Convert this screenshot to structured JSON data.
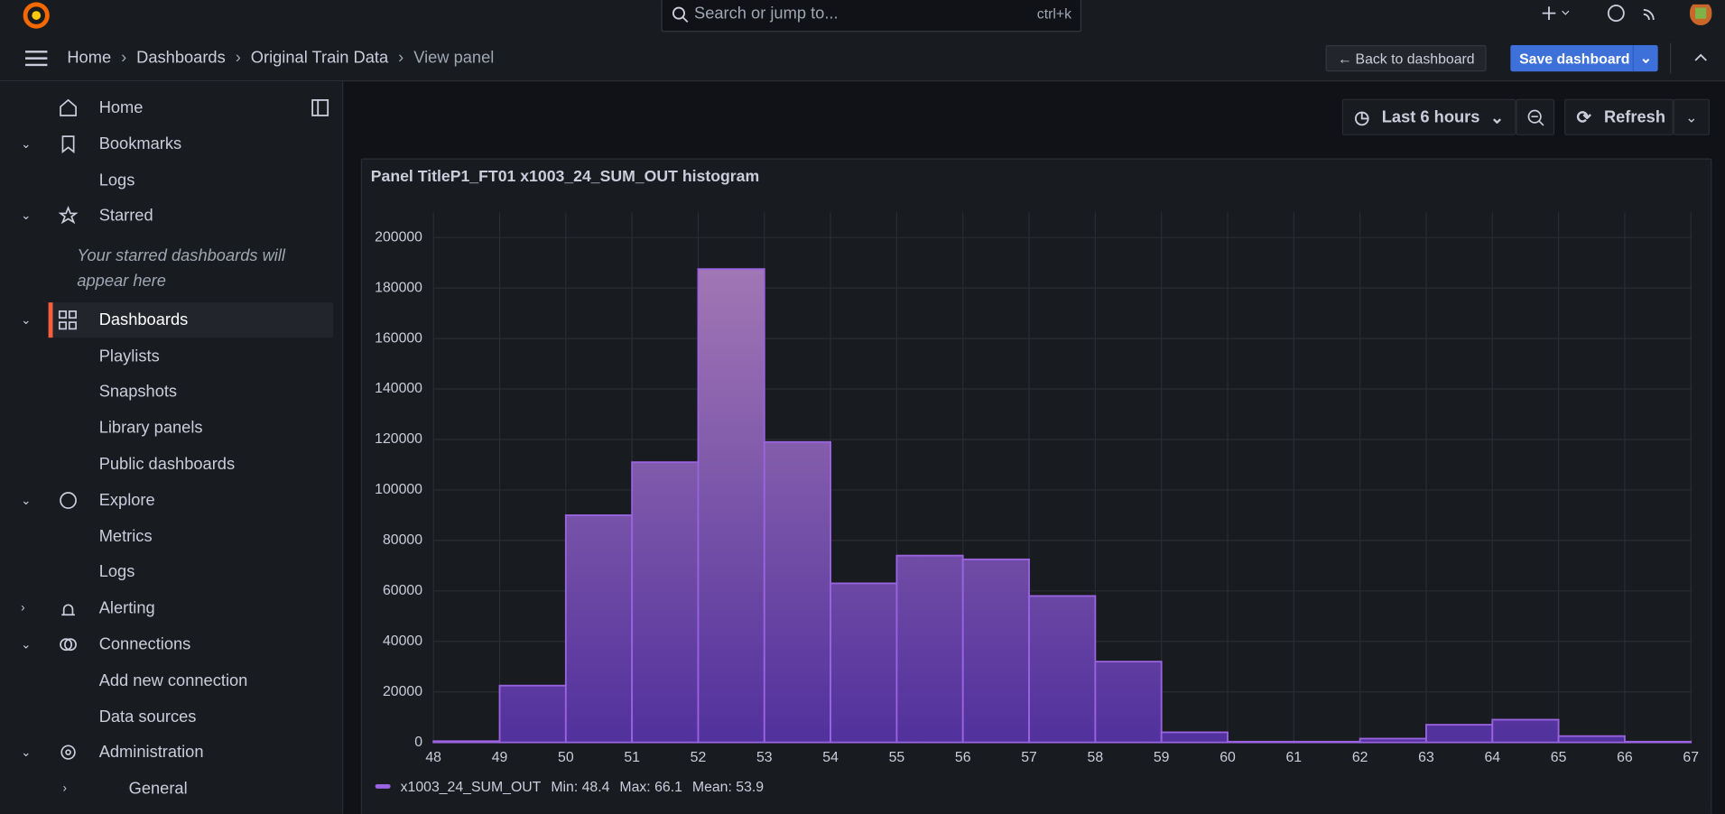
{
  "topbar": {
    "search": "Search or jump to...",
    "shortcut": "ctrl+k"
  },
  "breadcrumbs": [
    "Home",
    "Dashboards",
    "Original Train Data",
    "View panel"
  ],
  "buttons": {
    "back": "Back to dashboard",
    "save": "Save dashboard",
    "time_range": "Last 6 hours",
    "refresh": "Refresh"
  },
  "sidebar": {
    "items": [
      "Home",
      "Bookmarks",
      "Logs",
      "Starred",
      "Dashboards",
      "Playlists",
      "Snapshots",
      "Library panels",
      "Public dashboards",
      "Explore",
      "Metrics",
      "Logs",
      "Alerting",
      "Connections",
      "Add new connection",
      "Data sources",
      "Administration",
      "General"
    ],
    "starred_empty": "Your starred dashboards will appear here"
  },
  "chart_data": {
    "type": "histogram",
    "title": "Panel TitleP1_FT01 x1003_24_SUM_OUT histogram",
    "bins": [
      48,
      49,
      50,
      51,
      52,
      53,
      54,
      55,
      56,
      57,
      58,
      59,
      60,
      61,
      62,
      63,
      64,
      65,
      66,
      67
    ],
    "counts": [
      500,
      22500,
      90000,
      111000,
      187500,
      119000,
      63000,
      74000,
      72500,
      58000,
      32000,
      4000,
      300,
      300,
      1500,
      7000,
      9000,
      2500,
      300
    ],
    "series_name": "x1003_24_SUM_OUT",
    "color": "#9a63e0",
    "legend_stats": [
      "Min: 48.4",
      "Max: 66.1",
      "Mean: 53.9"
    ],
    "xlim": [
      48,
      67
    ],
    "xticks": [
      48,
      49,
      50,
      51,
      52,
      53,
      54,
      55,
      56,
      57,
      58,
      59,
      60,
      61,
      62,
      63,
      64,
      65,
      66,
      67
    ],
    "ylim": [
      0,
      210000
    ],
    "yticks": [
      0,
      20000,
      40000,
      60000,
      80000,
      100000,
      120000,
      140000,
      160000,
      180000,
      200000
    ],
    "grid": true
  }
}
